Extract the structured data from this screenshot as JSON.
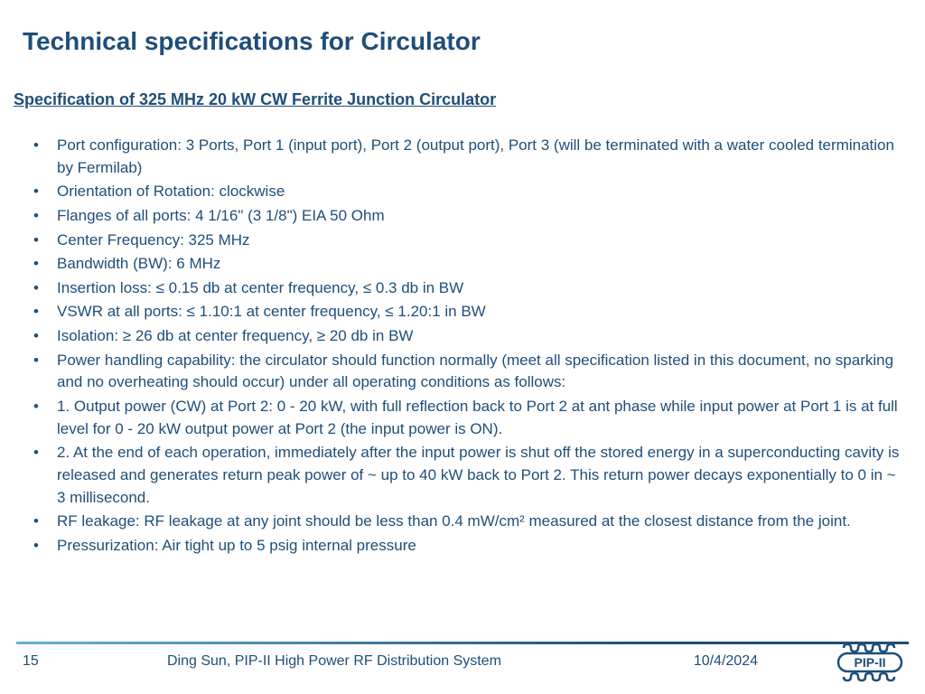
{
  "title": "Technical specifications for Circulator",
  "subheading": "Specification of 325 MHz 20 kW CW Ferrite Junction Circulator",
  "bullets": [
    "Port configuration: 3 Ports, Port 1 (input port), Port 2 (output port), Port 3 (will be terminated with a water cooled termination by Fermilab)",
    "Orientation of Rotation: clockwise",
    "Flanges of all ports: 4 1/16\" (3 1/8\")  EIA 50 Ohm",
    "Center Frequency: 325 MHz",
    "Bandwidth (BW): 6 MHz",
    "Insertion loss:  ≤ 0.15 db at center frequency, ≤ 0.3 db in BW",
    "VSWR at all ports: ≤ 1.10:1 at center frequency, ≤ 1.20:1 in BW",
    "Isolation: ≥ 26 db at center frequency, ≥ 20 db in BW",
    "Power handling capability:  the circulator should function normally (meet all specification listed in this document, no sparking and no overheating should occur) under all operating conditions as follows:",
    "1. Output power (CW) at Port 2: 0 - 20 kW, with full reflection back to Port 2 at ant phase while input power at Port 1 is at full level for 0 - 20 kW output power at Port 2 (the input power is ON).",
    "2. At the end of each operation, immediately after the input power is shut off the stored energy in a superconducting cavity is released and generates return peak power of ~ up to 40 kW back to Port 2. This return power decays exponentially to 0 in ~ 3 millisecond.",
    "RF leakage: RF leakage at any joint should be less than 0.4 mW/cm² measured at the closest distance from the joint.",
    "Pressurization: Air tight up to 5 psig internal pressure"
  ],
  "footer": {
    "page": "15",
    "center": "Ding Sun, PIP-II High Power RF Distribution System",
    "date": "10/4/2024",
    "logo_text": "PIP-II"
  },
  "colors": {
    "text": "#1f4e79",
    "background": "#ffffff",
    "rule_light": "#6ab2d4",
    "rule_dark": "#1f4e79"
  },
  "typography": {
    "title_fontsize": 28,
    "subheading_fontsize": 18,
    "body_fontsize": 17,
    "footer_fontsize": 16,
    "font_family": "Arial"
  }
}
